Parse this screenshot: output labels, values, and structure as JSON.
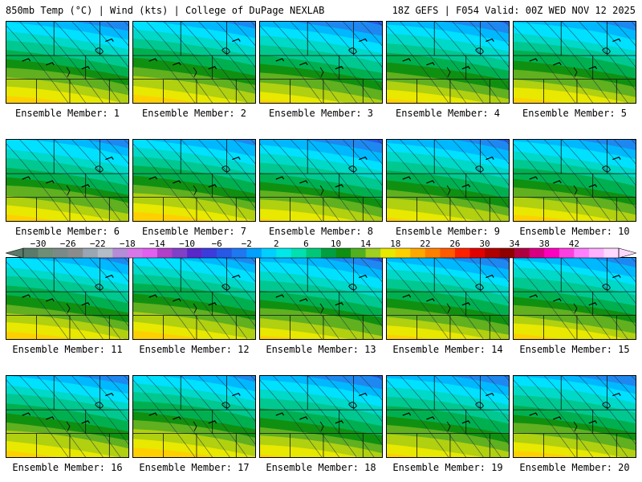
{
  "header": {
    "left": "850mb Temp (°C) | Wind (kts) | College of DuPage NEXLAB",
    "right": "18Z GEFS | F054 Valid: 00Z WED NOV 12 2025"
  },
  "panel_label_prefix": "Ensemble Member: ",
  "members": [
    {
      "label": "Ensemble Member: 1"
    },
    {
      "label": "Ensemble Member: 2"
    },
    {
      "label": "Ensemble Member: 3"
    },
    {
      "label": "Ensemble Member: 4"
    },
    {
      "label": "Ensemble Member: 5"
    },
    {
      "label": "Ensemble Member: 6"
    },
    {
      "label": "Ensemble Member: 7"
    },
    {
      "label": "Ensemble Member: 8"
    },
    {
      "label": "Ensemble Member: 9"
    },
    {
      "label": "Ensemble Member: 10"
    },
    {
      "label": "Ensemble Member: 11"
    },
    {
      "label": "Ensemble Member: 12"
    },
    {
      "label": "Ensemble Member: 13"
    },
    {
      "label": "Ensemble Member: 14"
    },
    {
      "label": "Ensemble Member: 15"
    },
    {
      "label": "Ensemble Member: 16"
    },
    {
      "label": "Ensemble Member: 17"
    },
    {
      "label": "Ensemble Member: 18"
    },
    {
      "label": "Ensemble Member: 19"
    },
    {
      "label": "Ensemble Member: 20"
    }
  ],
  "colorbar": {
    "ticks": [
      "-30",
      "-26",
      "-22",
      "-18",
      "-14",
      "-10",
      "-6",
      "-2",
      "2",
      "6",
      "10",
      "14",
      "18",
      "22",
      "26",
      "30",
      "34",
      "38",
      "42"
    ],
    "colors": [
      "#5a7a6a",
      "#6e8e78",
      "#7a8a88",
      "#8c8c8c",
      "#9aa6b4",
      "#b4bcc8",
      "#b48cd8",
      "#d878e8",
      "#e060f0",
      "#b040c8",
      "#8040c8",
      "#5a28c8",
      "#3c3cdc",
      "#2858e6",
      "#1e78f0",
      "#00a0ff",
      "#00d0ff",
      "#00e8e8",
      "#00e0b0",
      "#00c878",
      "#00a040",
      "#109010",
      "#50b020",
      "#a0d020",
      "#e8e800",
      "#ffd000",
      "#ffa800",
      "#ff8000",
      "#ff5a00",
      "#ff2000",
      "#e00000",
      "#b00000",
      "#900000",
      "#b00040",
      "#d80080",
      "#ff00c0",
      "#ff40e0",
      "#ff80ff",
      "#ffb0ff",
      "#ffd8ff"
    ]
  },
  "temperature_bands": [
    "#6800e8",
    "#3c28dc",
    "#2858e6",
    "#1e88f0",
    "#00b8ff",
    "#00e0ff",
    "#00d8c8",
    "#00c890",
    "#00b050",
    "#109010",
    "#60b020",
    "#b0d010",
    "#e8e800",
    "#ffd000"
  ]
}
